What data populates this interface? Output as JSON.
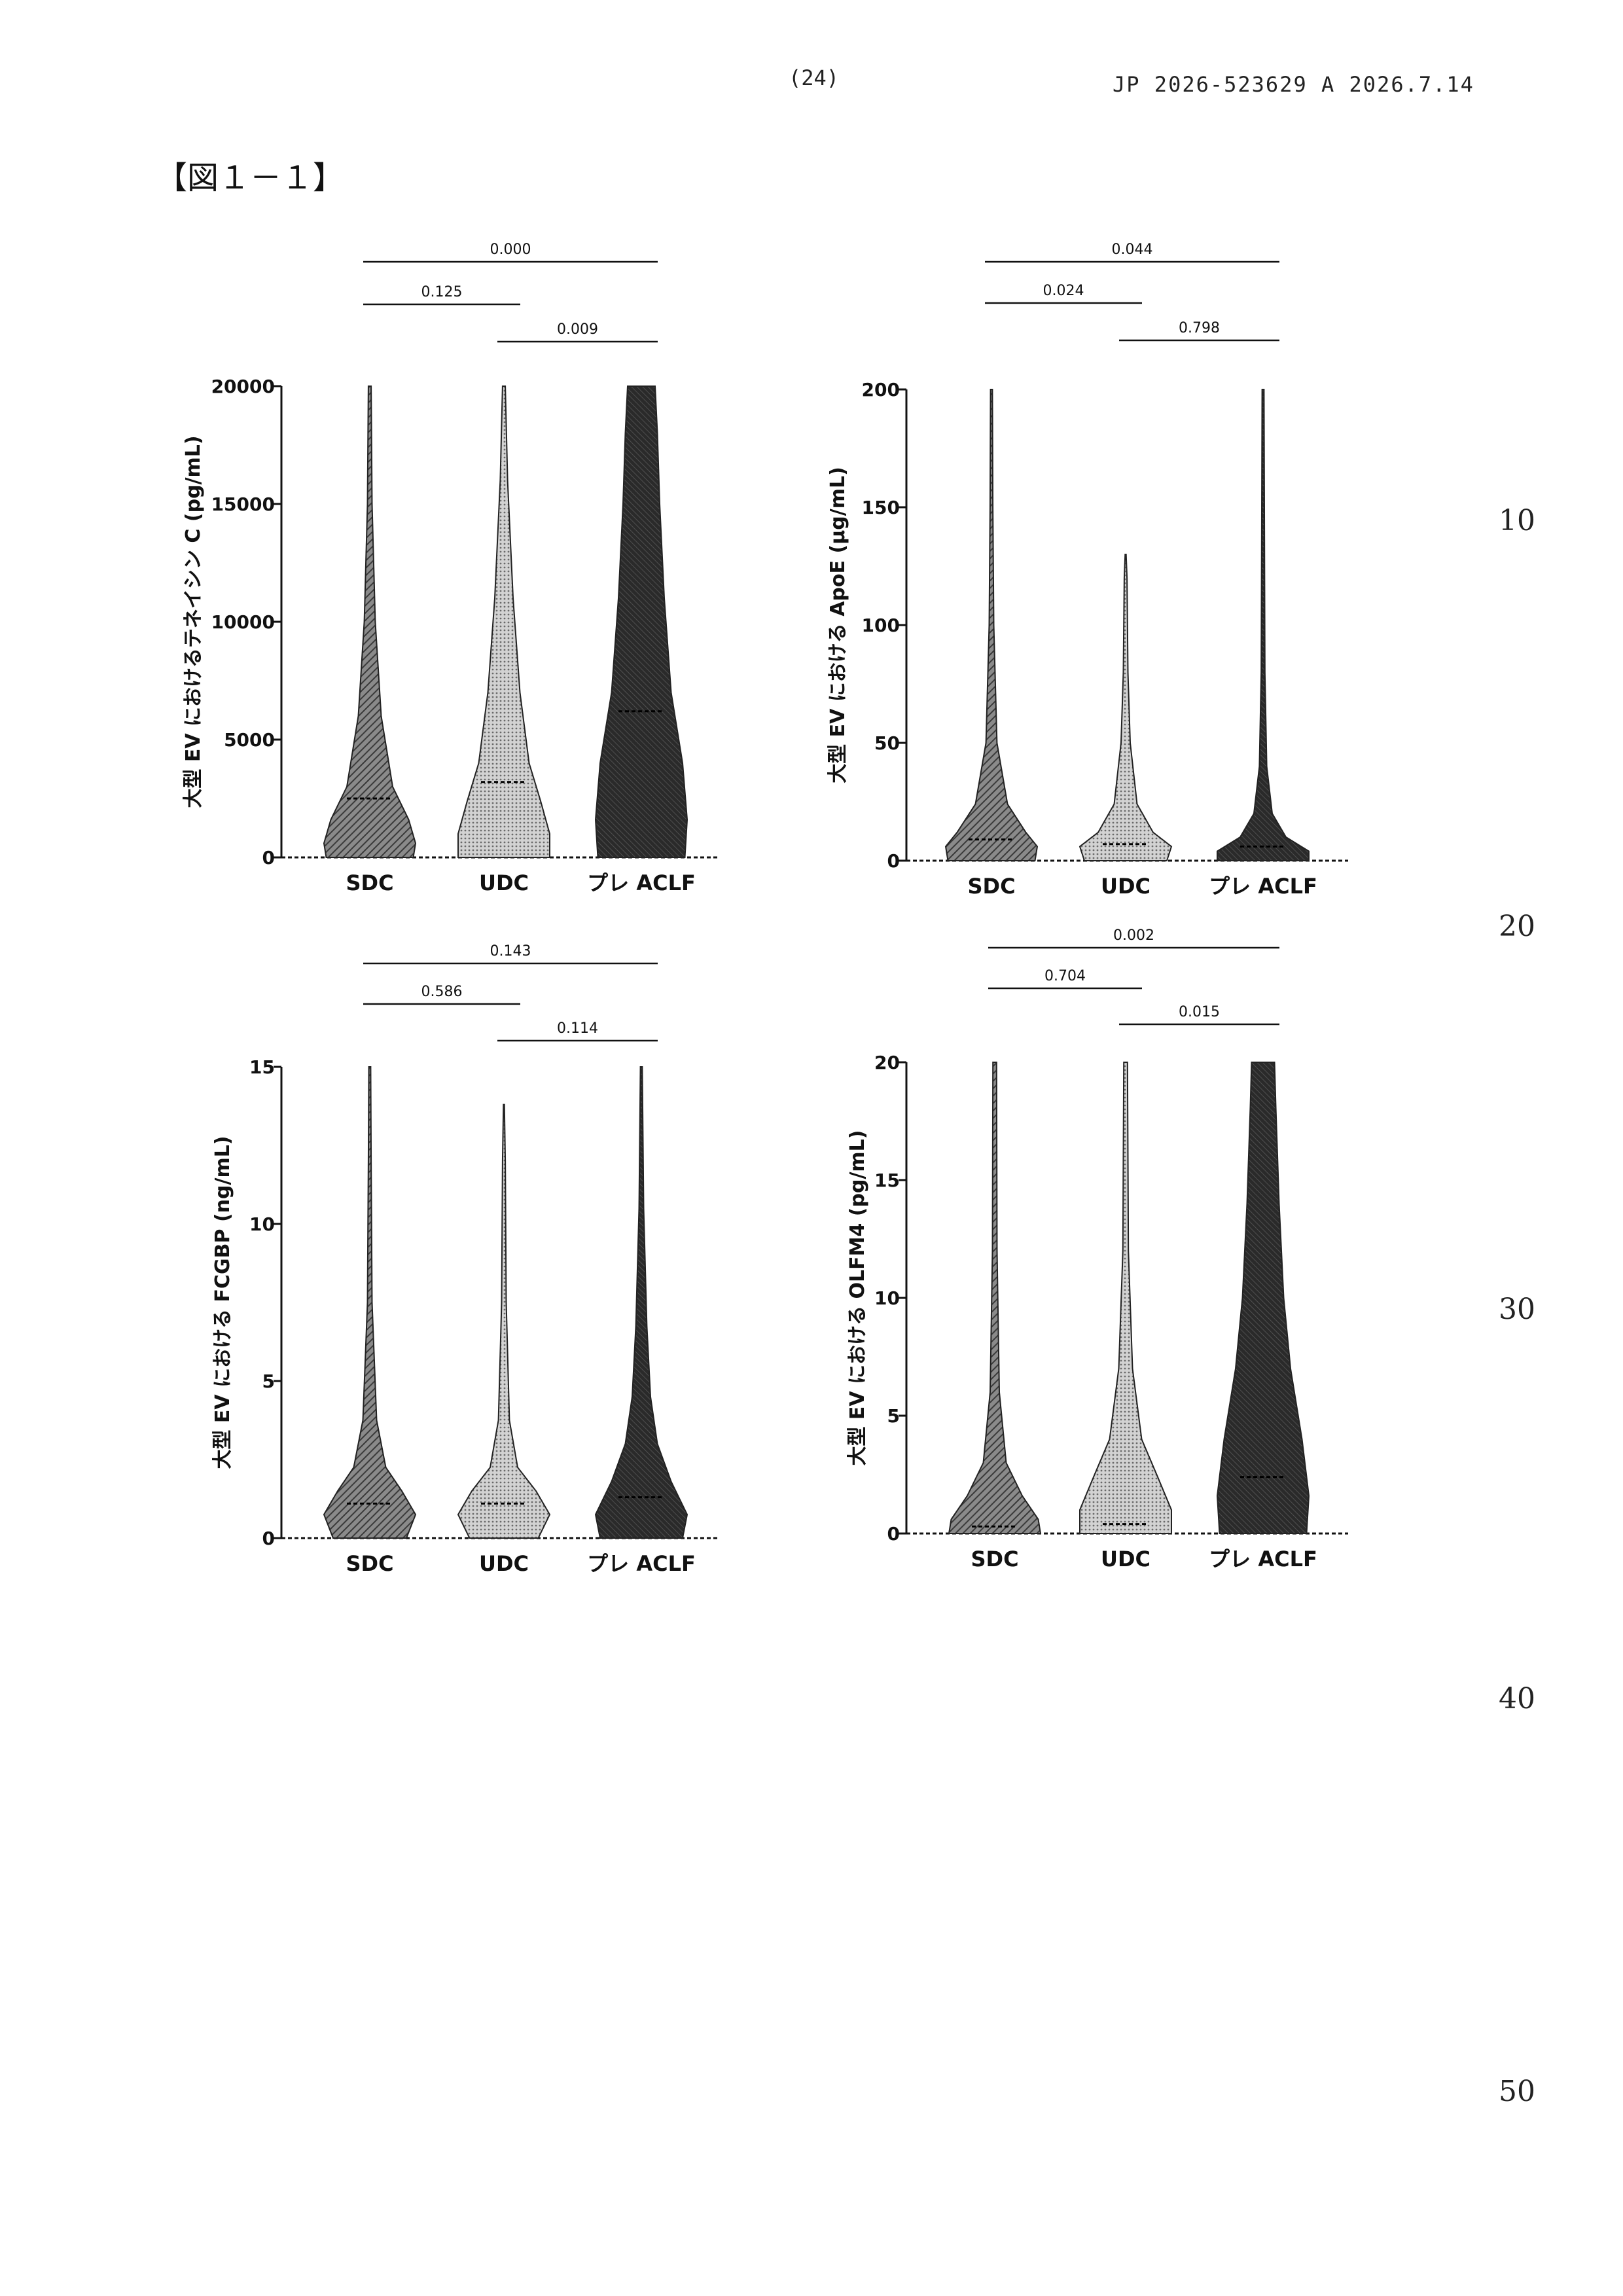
{
  "header": {
    "page_number": "(24)",
    "patent_id": "JP 2026-523629 A 2026.7.14"
  },
  "figure_label": "【図１－１】",
  "line_numbers": [
    "10",
    "20",
    "30",
    "40",
    "50"
  ],
  "patterns": {
    "SDC": "#6e6e6e",
    "UDC": "#b4b4b4",
    "PRE": "#262626"
  },
  "chart_data": [
    {
      "type": "violin",
      "ylabel": "大型 EV におけるテネイシン C (pg/mL)",
      "ylim": [
        0,
        20000
      ],
      "yticks": [
        "0",
        "5000",
        "10000",
        "15000",
        "20000"
      ],
      "categories": [
        "SDC",
        "UDC",
        "プレ ACLF"
      ],
      "medians": [
        2500,
        3200,
        6200
      ],
      "comparisons": [
        {
          "from": 0,
          "to": 2,
          "p": "0.000",
          "level": 2
        },
        {
          "from": 0,
          "to": 1,
          "p": "0.125",
          "level": 1
        },
        {
          "from": 1,
          "to": 2,
          "p": "0.009",
          "level": 0
        }
      ]
    },
    {
      "type": "violin",
      "ylabel": "大型 EV における ApoE (μg/mL)",
      "ylim": [
        0,
        200
      ],
      "yticks": [
        "0",
        "50",
        "100",
        "150",
        "200"
      ],
      "categories": [
        "SDC",
        "UDC",
        "プレ ACLF"
      ],
      "medians": [
        9,
        7,
        6
      ],
      "comparisons": [
        {
          "from": 0,
          "to": 2,
          "p": "0.044",
          "level": 2
        },
        {
          "from": 0,
          "to": 1,
          "p": "0.024",
          "level": 1
        },
        {
          "from": 1,
          "to": 2,
          "p": "0.798",
          "level": 0
        }
      ]
    },
    {
      "type": "violin",
      "ylabel": "大型 EV における FCGBP (ng/mL)",
      "ylim": [
        0,
        15
      ],
      "yticks": [
        "0",
        "5",
        "10",
        "15"
      ],
      "categories": [
        "SDC",
        "UDC",
        "プレ ACLF"
      ],
      "medians": [
        1.1,
        1.1,
        1.3
      ],
      "comparisons": [
        {
          "from": 0,
          "to": 2,
          "p": "0.143",
          "level": 2
        },
        {
          "from": 0,
          "to": 1,
          "p": "0.586",
          "level": 1
        },
        {
          "from": 1,
          "to": 2,
          "p": "0.114",
          "level": 0
        }
      ]
    },
    {
      "type": "violin",
      "ylabel": "大型 EV における OLFM4 (pg/mL)",
      "ylim": [
        0,
        20
      ],
      "yticks": [
        "0",
        "5",
        "10",
        "15",
        "20"
      ],
      "categories": [
        "SDC",
        "UDC",
        "プレ ACLF"
      ],
      "medians": [
        0.3,
        0.4,
        2.4
      ],
      "comparisons": [
        {
          "from": 0,
          "to": 2,
          "p": "0.002",
          "level": 2
        },
        {
          "from": 0,
          "to": 1,
          "p": "0.704",
          "level": 1
        },
        {
          "from": 1,
          "to": 2,
          "p": "0.015",
          "level": 0
        }
      ]
    }
  ]
}
